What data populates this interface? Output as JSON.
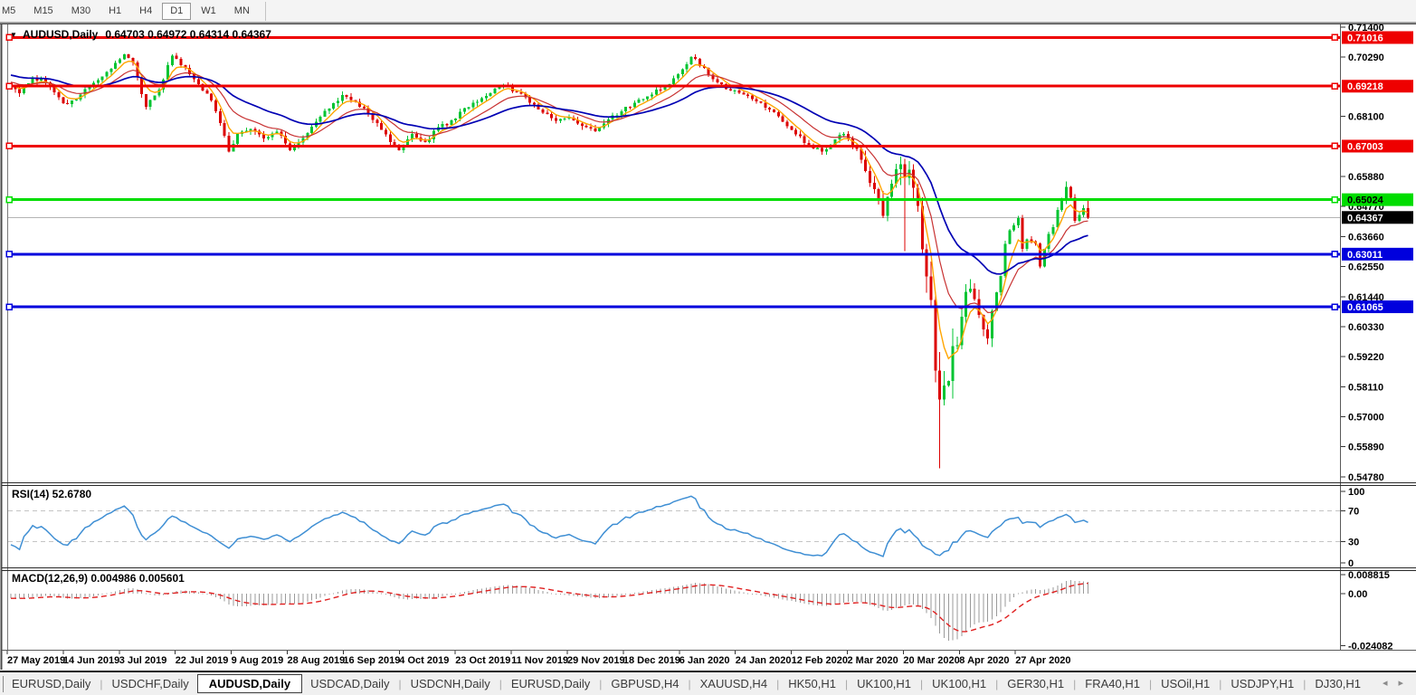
{
  "toolbar": {
    "timeframes": [
      "M5",
      "M15",
      "M30",
      "H1",
      "H4",
      "D1",
      "W1",
      "MN"
    ],
    "active": "D1"
  },
  "chart": {
    "dropdown_icon": "▼",
    "symbol": "AUDUSD,Daily",
    "ohlc": "0.64703 0.64972 0.64314 0.64367"
  },
  "chart_data": {
    "type": "candlestick+indicators",
    "symbol": "AUDUSD",
    "timeframe": "Daily",
    "bars": 248,
    "ohlc_display": {
      "open": 0.64703,
      "high": 0.64972,
      "low": 0.64314,
      "close": 0.64367
    },
    "current_price": {
      "value": 0.64367,
      "label": "0.64367",
      "line_color": "#b4b4b4",
      "label_bg": "#000000",
      "label_fg": "#ffffff"
    },
    "price_axis": {
      "min": 0.5478,
      "max": 0.714,
      "ticks": [
        "0.71400",
        "0.70290",
        "0.68100",
        "0.65880",
        "0.64770",
        "0.63660",
        "0.62550",
        "0.61440",
        "0.60330",
        "0.59220",
        "0.58110",
        "0.57000",
        "0.55890",
        "0.54780"
      ]
    },
    "hlines": [
      {
        "price": 0.71016,
        "label": "0.71016",
        "color": "#ee0000",
        "label_fg": "#ffffff",
        "width": 3
      },
      {
        "price": 0.69218,
        "label": "0.69218",
        "color": "#ee0000",
        "label_fg": "#ffffff",
        "width": 3
      },
      {
        "price": 0.67003,
        "label": "0.67003",
        "color": "#ee0000",
        "label_fg": "#ffffff",
        "width": 3
      },
      {
        "price": 0.65024,
        "label": "0.65024",
        "color": "#00dd00",
        "label_fg": "#000000",
        "width": 3
      },
      {
        "price": 0.63011,
        "label": "0.63011",
        "color": "#0000dd",
        "label_fg": "#ffffff",
        "width": 3
      },
      {
        "price": 0.61065,
        "label": "0.61065",
        "color": "#0000dd",
        "label_fg": "#ffffff",
        "width": 3
      }
    ],
    "candle_colors": {
      "up": "#00c432",
      "down": "#dc0000"
    },
    "moving_averages": [
      {
        "period": 5,
        "type": "ema",
        "color": "#ffa500",
        "width": 1.4
      },
      {
        "period": 13,
        "type": "ema",
        "color": "#c83232",
        "width": 1.2
      },
      {
        "period": 30,
        "type": "ema",
        "color": "#0000b4",
        "width": 1.7
      }
    ],
    "price_anchors": [
      [
        -60,
        0.717
      ],
      [
        -50,
        0.71
      ],
      [
        -40,
        0.703
      ],
      [
        -30,
        0.7
      ],
      [
        -20,
        0.6985
      ],
      [
        -12,
        0.695
      ],
      [
        -6,
        0.6935
      ],
      [
        -1,
        0.6922
      ],
      [
        0,
        0.692
      ],
      [
        2,
        0.6895
      ],
      [
        5,
        0.695
      ],
      [
        8,
        0.6935
      ],
      [
        11,
        0.688
      ],
      [
        13,
        0.6855
      ],
      [
        16,
        0.689
      ],
      [
        19,
        0.6935
      ],
      [
        22,
        0.6975
      ],
      [
        26,
        0.704
      ],
      [
        28,
        0.701
      ],
      [
        31,
        0.6845
      ],
      [
        34,
        0.691
      ],
      [
        37,
        0.7035
      ],
      [
        40,
        0.699
      ],
      [
        43,
        0.693
      ],
      [
        46,
        0.687
      ],
      [
        48,
        0.6785
      ],
      [
        50,
        0.668
      ],
      [
        52,
        0.6745
      ],
      [
        55,
        0.6765
      ],
      [
        58,
        0.673
      ],
      [
        61,
        0.6755
      ],
      [
        64,
        0.6685
      ],
      [
        67,
        0.673
      ],
      [
        70,
        0.679
      ],
      [
        73,
        0.684
      ],
      [
        76,
        0.689
      ],
      [
        79,
        0.6865
      ],
      [
        82,
        0.682
      ],
      [
        85,
        0.676
      ],
      [
        89,
        0.6685
      ],
      [
        92,
        0.6745
      ],
      [
        95,
        0.6715
      ],
      [
        98,
        0.677
      ],
      [
        101,
        0.6795
      ],
      [
        104,
        0.684
      ],
      [
        107,
        0.6865
      ],
      [
        110,
        0.6895
      ],
      [
        113,
        0.6928
      ],
      [
        116,
        0.69
      ],
      [
        119,
        0.686
      ],
      [
        122,
        0.6825
      ],
      [
        125,
        0.6795
      ],
      [
        128,
        0.6805
      ],
      [
        131,
        0.6775
      ],
      [
        134,
        0.6755
      ],
      [
        137,
        0.68
      ],
      [
        140,
        0.683
      ],
      [
        143,
        0.686
      ],
      [
        146,
        0.6885
      ],
      [
        149,
        0.691
      ],
      [
        152,
        0.695
      ],
      [
        156,
        0.703
      ],
      [
        159,
        0.699
      ],
      [
        162,
        0.6935
      ],
      [
        165,
        0.6905
      ],
      [
        168,
        0.689
      ],
      [
        171,
        0.6865
      ],
      [
        174,
        0.6835
      ],
      [
        177,
        0.679
      ],
      [
        180,
        0.6745
      ],
      [
        183,
        0.6705
      ],
      [
        186,
        0.668
      ],
      [
        189,
        0.6725
      ],
      [
        191,
        0.6745
      ],
      [
        194,
        0.669
      ],
      [
        196,
        0.661
      ],
      [
        198,
        0.654
      ],
      [
        200,
        0.6445
      ],
      [
        202,
        0.656
      ],
      [
        204,
        0.6635
      ],
      [
        205,
        0.658
      ],
      [
        206,
        0.661
      ],
      [
        207,
        0.6545
      ],
      [
        208,
        0.648
      ],
      [
        209,
        0.6315
      ],
      [
        210,
        0.6215
      ],
      [
        211,
        0.613
      ],
      [
        212,
        0.587
      ],
      [
        213,
        0.576
      ],
      [
        214,
        0.5815
      ],
      [
        215,
        0.5835
      ],
      [
        216,
        0.596
      ],
      [
        217,
        0.5965
      ],
      [
        218,
        0.607
      ],
      [
        219,
        0.616
      ],
      [
        220,
        0.6175
      ],
      [
        221,
        0.6135
      ],
      [
        222,
        0.6075
      ],
      [
        223,
        0.6025
      ],
      [
        224,
        0.599
      ],
      [
        225,
        0.609
      ],
      [
        226,
        0.616
      ],
      [
        227,
        0.622
      ],
      [
        228,
        0.634
      ],
      [
        229,
        0.639
      ],
      [
        231,
        0.6435
      ],
      [
        232,
        0.632
      ],
      [
        233,
        0.6355
      ],
      [
        235,
        0.634
      ],
      [
        236,
        0.6255
      ],
      [
        237,
        0.632
      ],
      [
        238,
        0.6375
      ],
      [
        239,
        0.64
      ],
      [
        240,
        0.6465
      ],
      [
        241,
        0.65
      ],
      [
        242,
        0.655
      ],
      [
        243,
        0.651
      ],
      [
        244,
        0.6425
      ],
      [
        245,
        0.6445
      ],
      [
        246,
        0.64703
      ],
      [
        247,
        0.64367
      ]
    ],
    "wick_overrides": {
      "200": {
        "low": 0.6434
      },
      "205": {
        "low": 0.6313
      },
      "213": {
        "low": 0.551
      },
      "242": {
        "high": 0.657
      }
    },
    "last_candle": {
      "open": 0.64703,
      "high": 0.64972,
      "low": 0.64314,
      "close": 0.64367
    },
    "rsi": {
      "label": "RSI(14) 52.6780",
      "period": 14,
      "value": 52.678,
      "levels": [
        70,
        30
      ],
      "scale_ticks": [
        "100",
        "70",
        "30",
        "0"
      ],
      "line_color": "#3f8fd4",
      "level_color": "#c4c4c4"
    },
    "macd": {
      "label": "MACD(12,26,9) 0.004986 0.005601",
      "fast": 12,
      "slow": 26,
      "signal": 9,
      "macd_value": 0.004986,
      "signal_value": 0.005601,
      "scale_ticks": [
        {
          "label": "0.008815",
          "value": 0.008815
        },
        {
          "label": "0.00",
          "value": 0
        },
        {
          "label": "-0.024082",
          "value": -0.024082
        }
      ],
      "bar_color": "#9a9a9a",
      "signal_color": "#e02020"
    },
    "date_labels": [
      "27 May 2019",
      "14 Jun 2019",
      "3 Jul 2019",
      "22 Jul 2019",
      "9 Aug 2019",
      "28 Aug 2019",
      "16 Sep 2019",
      "4 Oct 2019",
      "23 Oct 2019",
      "11 Nov 2019",
      "29 Nov 2019",
      "18 Dec 2019",
      "6 Jan 2020",
      "24 Jan 2020",
      "12 Feb 2020",
      "2 Mar 2020",
      "20 Mar 2020",
      "8 Apr 2020",
      "27 Apr 2020"
    ]
  },
  "bottom_tabs": {
    "tabs": [
      {
        "label": "EURUSD,Daily",
        "active": false
      },
      {
        "label": "USDCHF,Daily",
        "active": false
      },
      {
        "label": "AUDUSD,Daily",
        "active": true
      },
      {
        "label": "USDCAD,Daily",
        "active": false
      },
      {
        "label": "USDCNH,Daily",
        "active": false
      },
      {
        "label": "EURUSD,Daily",
        "active": false
      },
      {
        "label": "GBPUSD,H4",
        "active": false
      },
      {
        "label": "XAUUSD,H4",
        "active": false
      },
      {
        "label": "HK50,H1",
        "active": false
      },
      {
        "label": "UK100,H1",
        "active": false
      },
      {
        "label": "UK100,H1",
        "active": false
      },
      {
        "label": "GER30,H1",
        "active": false
      },
      {
        "label": "FRA40,H1",
        "active": false
      },
      {
        "label": "USOil,H1",
        "active": false
      },
      {
        "label": "USDJPY,H1",
        "active": false
      },
      {
        "label": "DJ30,H1",
        "active": false
      }
    ],
    "separator": "|",
    "scroll_left": "◂",
    "scroll_right": "▸"
  }
}
